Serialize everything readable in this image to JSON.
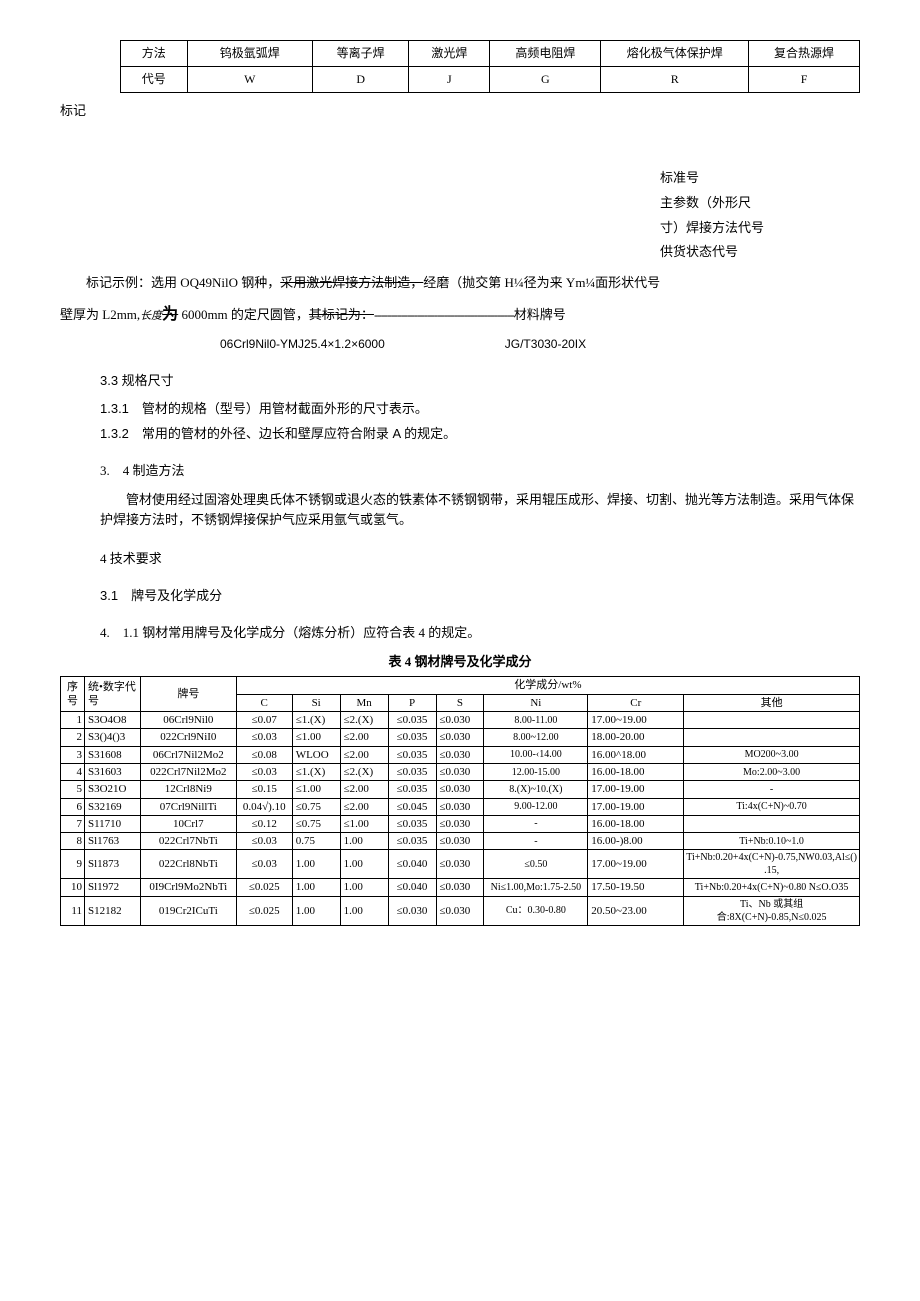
{
  "table1": {
    "row_labels": [
      "方法",
      "代号"
    ],
    "cols": [
      "钨极氩弧焊",
      "等离子焊",
      "激光焊",
      "高频电阻焊",
      "熔化极气体保护焊",
      "复合热源焊"
    ],
    "codes": [
      "W",
      "D",
      "J",
      "G",
      "R",
      "F"
    ]
  },
  "marking_label": "标记",
  "right_block": {
    "l1": "标准号",
    "l2": "主参数（外形尺",
    "l3": "寸）焊接方法代号",
    "l4": "供货状态代号"
  },
  "para_example_1a": "标记示例：选用 OQ49NilO 钢种，",
  "para_example_1b_strike": "采用激光焊接方法制造，",
  "para_example_1c": "经磨（抛交第 H¼径为来 Ym¼面形状代号",
  "para_example_2a": "壁厚为 L2mm,",
  "para_example_2b_ital": "长度",
  "para_example_2c_strike": "为",
  "para_example_2d": " 6000mm 的定尺圆管，",
  "para_example_2e_strike": "其标记为：",
  "para_example_2_dashes": "------------------------------------------",
  "para_example_2_tail": "材料牌号",
  "example_code": "06Crl9Nil0-YMJ25.4×1.2×6000",
  "example_std": "JG/T3030-20IX",
  "sec_33": "3.3 规格尺寸",
  "item_131": "1.3.1　管材的规格（型号）用管材截面外形的尺寸表示。",
  "item_132": "1.3.2　常用的管材的外径、边长和壁厚应符合附录 A 的规定。",
  "sec_34": "3.　4 制造方法",
  "p_34": "管材使用经过固溶处理奥氏体不锈钢或退火态的铁素体不锈钢钢带，采用辊压成形、焊接、切割、抛光等方法制造。采用气体保护焊接方法时，不锈钢焊接保护气应采用氩气或氢气。",
  "sec_4": "4 技术要求",
  "sec_31": "3.1　牌号及化学成分",
  "sec_411": "4.　1.1 钢材常用牌号及化学成分（熔炼分析）应符合表 4 的规定。",
  "table4_title": "表 4 钢材牌号及化学成分",
  "table4": {
    "head": {
      "seq": "序号",
      "digit": "统•数字代号",
      "grade": "牌号",
      "chem_group": "化学成分/wt%",
      "cols": [
        "C",
        "Si",
        "Mn",
        "P",
        "S",
        "Ni",
        "Cr",
        "其他"
      ]
    },
    "rows": [
      {
        "n": "1",
        "d": "S3O4O8",
        "g": "06Crl9Nil0",
        "c": "≤0.07",
        "si": "≤1.(X)",
        "mn": "≤2.(X)",
        "p": "≤0.035",
        "s": "≤0.030",
        "ni": "8.00-11.00",
        "cr": "17.00~19.00",
        "o": ""
      },
      {
        "n": "2",
        "d": "S3()4()3",
        "g": "022Crl9NiI0",
        "c": "≤0.03",
        "si": "≤1.00",
        "mn": "≤2.00",
        "p": "≤0.035",
        "s": "≤0.030",
        "ni": "8.00~12.00",
        "cr": "18.00-20.00",
        "o": ""
      },
      {
        "n": "3",
        "d": "S31608",
        "g": "06Crl7Nil2Mo2",
        "c": "≤0.08",
        "si": "WLOO",
        "mn": "≤2.00",
        "p": "≤0.035",
        "s": "≤0.030",
        "ni": "10.00-‹14.00",
        "cr": "16.00^18.00",
        "o": "MO200~3.00"
      },
      {
        "n": "4",
        "d": "S31603",
        "g": "022Crl7Nil2Mo2",
        "c": "≤0.03",
        "si": "≤1.(X)",
        "mn": "≤2.(X)",
        "p": "≤0.035",
        "s": "≤0.030",
        "ni": "12.00-15.00",
        "cr": "16.00-18.00",
        "o": "Mo:2.00~3.00"
      },
      {
        "n": "5",
        "d": "S3O21O",
        "g": "12Crl8Ni9",
        "c": "≤0.15",
        "si": "≤1.00",
        "mn": "≤2.00",
        "p": "≤0.035",
        "s": "≤0.030",
        "ni": "8.(X)~10.(X)",
        "cr": "17.00-19.00",
        "o": "-"
      },
      {
        "n": "6",
        "d": "S32169",
        "g": "07Crl9NillTi",
        "c": "0.04√).10",
        "si": "≤0.75",
        "mn": "≤2.00",
        "p": "≤0.045",
        "s": "≤0.030",
        "ni": "9.00-12.00",
        "cr": "17.00-19.00",
        "o": "Ti:4x(C+N)~0.70"
      },
      {
        "n": "7",
        "d": "S11710",
        "g": "10Crl7",
        "c": "≤0.12",
        "si": "≤0.75",
        "mn": "≤1.00",
        "p": "≤0.035",
        "s": "≤0.030",
        "ni": "-",
        "cr": "16.00-18.00",
        "o": ""
      },
      {
        "n": "8",
        "d": "Sl1763",
        "g": "022Crl7NbTi",
        "c": "≤0.03",
        "si": "0.75",
        "mn": "1.00",
        "p": "≤0.035",
        "s": "≤0.030",
        "ni": "-",
        "cr": "16.00-)8.00",
        "o": "Ti+Nb:0.10~1.0"
      },
      {
        "n": "9",
        "d": "Sl1873",
        "g": "022Crl8NbTi",
        "c": "≤0.03",
        "si": "1.00",
        "mn": "1.00",
        "p": "≤0.040",
        "s": "≤0.030",
        "ni": "≤0.50",
        "cr": "17.00~19.00",
        "o": "Ti+Nb:0.20+4x(C+N)-0.75,NW0.03,Al≤().15,"
      },
      {
        "n": "10",
        "d": "Sl1972",
        "g": "0I9Crl9Mo2NbTi",
        "c": "≤0.025",
        "si": "1.00",
        "mn": "1.00",
        "p": "≤0.040",
        "s": "≤0.030",
        "ni": "Ni≤1.00,Mo:1.75-2.50",
        "cr": "17.50-19.50",
        "o": "Ti+Nb:0.20+4x(C+N)~0.80 N≤O.O35"
      },
      {
        "n": "11",
        "d": "S12182",
        "g": "019Cr2ICuTi",
        "c": "≤0.025",
        "si": "1.00",
        "mn": "1.00",
        "p": "≤0.030",
        "s": "≤0.030",
        "ni": "Cu：0.30-0.80",
        "cr": "20.50~23.00",
        "o": "Ti、Nb 或其组合:8X(C+N)-0.85,N≤0.025"
      }
    ],
    "col_widths": [
      "3%",
      "7%",
      "12%",
      "7%",
      "6%",
      "6%",
      "6%",
      "6%",
      "13%",
      "12%",
      "22%"
    ]
  }
}
